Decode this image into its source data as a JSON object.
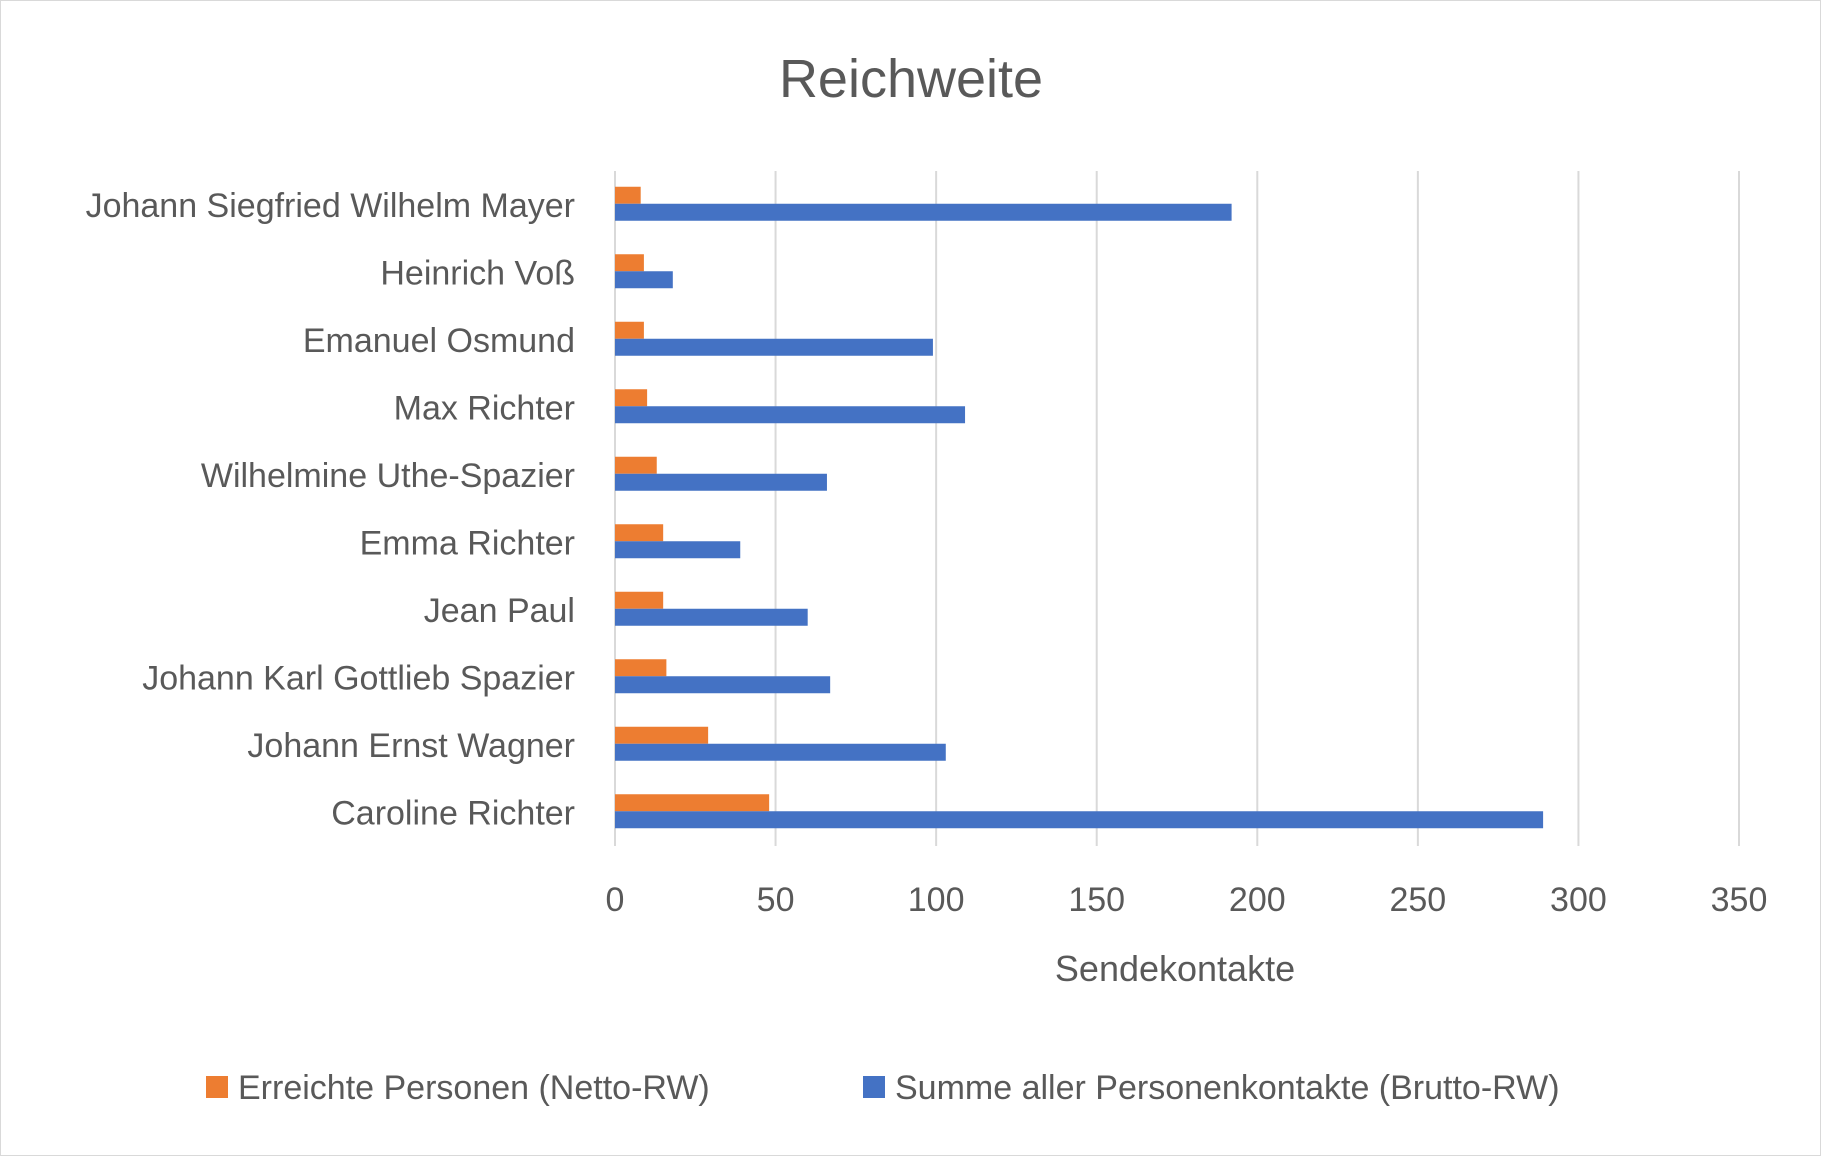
{
  "chart_data": {
    "type": "bar",
    "orientation": "horizontal",
    "title": "Reichweite",
    "xlabel": "Sendekontakte",
    "ylabel": "",
    "xlim": [
      0,
      350
    ],
    "x_ticks": [
      "0",
      "50",
      "100",
      "150",
      "200",
      "250",
      "300",
      "350"
    ],
    "x_tick_values": [
      0,
      50,
      100,
      150,
      200,
      250,
      300,
      350
    ],
    "grid": true,
    "legend_position": "bottom",
    "categories": [
      "Johann Siegfried Wilhelm Mayer",
      "Heinrich Voß",
      "Emanuel Osmund",
      "Max Richter",
      "Wilhelmine Uthe-Spazier",
      "Emma Richter",
      "Jean Paul",
      "Johann Karl Gottlieb Spazier",
      "Johann Ernst Wagner",
      "Caroline Richter"
    ],
    "series": [
      {
        "name": "Erreichte Personen (Netto-RW)",
        "color": "#ED7D31",
        "values": [
          8,
          9,
          9,
          10,
          13,
          15,
          15,
          16,
          29,
          48
        ]
      },
      {
        "name": "Summe aller Personenkontakte (Brutto-RW)",
        "color": "#4472C4",
        "values": [
          192,
          18,
          99,
          109,
          66,
          39,
          60,
          67,
          103,
          289
        ]
      }
    ]
  },
  "colors": {
    "grid": "#d9d9d9",
    "text": "#595959"
  }
}
